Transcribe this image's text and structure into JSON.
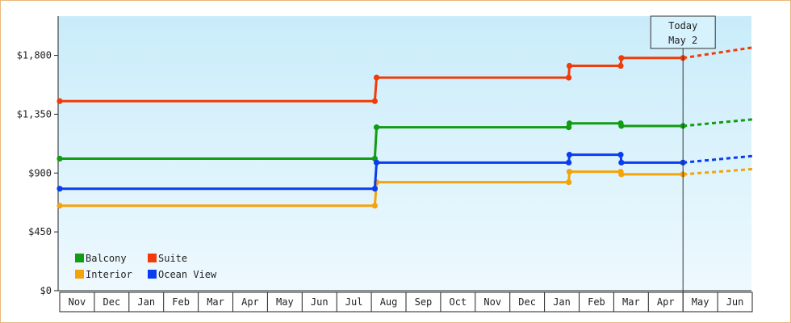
{
  "chart_data": {
    "type": "line",
    "step": true,
    "title": "",
    "xlabel": "",
    "ylabel": "",
    "ylim": [
      0,
      2100
    ],
    "yticks": [
      0,
      450,
      900,
      1350,
      1800
    ],
    "ytick_labels": [
      "$0",
      "$450",
      "$900",
      "$1,350",
      "$1,800"
    ],
    "xticks": [
      "Nov",
      "Dec",
      "Jan",
      "Feb",
      "Mar",
      "Apr",
      "May",
      "Jun",
      "Jul",
      "Aug",
      "Sep",
      "Oct",
      "Nov",
      "Dec",
      "Jan",
      "Feb",
      "Mar",
      "Apr",
      "May",
      "Jun"
    ],
    "today": {
      "line1": "Today",
      "line2": "May 2",
      "x": 18.0
    },
    "legend_position": "bottom-left",
    "series": [
      {
        "name": "Balcony",
        "color": "#129c12",
        "points": [
          [
            0,
            1010
          ],
          [
            9.1,
            1010
          ],
          [
            9.15,
            1250
          ],
          [
            14.7,
            1250
          ],
          [
            14.72,
            1280
          ],
          [
            16.2,
            1280
          ],
          [
            16.22,
            1260
          ],
          [
            18.0,
            1260
          ]
        ],
        "forecast": [
          [
            18.0,
            1260
          ],
          [
            20.0,
            1310
          ]
        ]
      },
      {
        "name": "Suite",
        "color": "#f03c0a",
        "points": [
          [
            0,
            1450
          ],
          [
            9.1,
            1450
          ],
          [
            9.15,
            1630
          ],
          [
            14.7,
            1630
          ],
          [
            14.72,
            1720
          ],
          [
            16.2,
            1720
          ],
          [
            16.22,
            1780
          ],
          [
            18.0,
            1780
          ]
        ],
        "forecast": [
          [
            18.0,
            1780
          ],
          [
            20.0,
            1860
          ]
        ]
      },
      {
        "name": "Interior",
        "color": "#f5a30a",
        "points": [
          [
            0,
            650
          ],
          [
            9.1,
            650
          ],
          [
            9.15,
            830
          ],
          [
            14.7,
            830
          ],
          [
            14.72,
            910
          ],
          [
            16.2,
            910
          ],
          [
            16.22,
            890
          ],
          [
            18.0,
            890
          ]
        ],
        "forecast": [
          [
            18.0,
            890
          ],
          [
            20.0,
            930
          ]
        ]
      },
      {
        "name": "Ocean View",
        "color": "#0a3cf0",
        "points": [
          [
            0,
            780
          ],
          [
            9.1,
            780
          ],
          [
            9.15,
            980
          ],
          [
            14.7,
            980
          ],
          [
            14.72,
            1040
          ],
          [
            16.2,
            1040
          ],
          [
            16.22,
            980
          ],
          [
            18.0,
            980
          ]
        ],
        "forecast": [
          [
            18.0,
            980
          ],
          [
            20.0,
            1030
          ]
        ]
      }
    ]
  }
}
